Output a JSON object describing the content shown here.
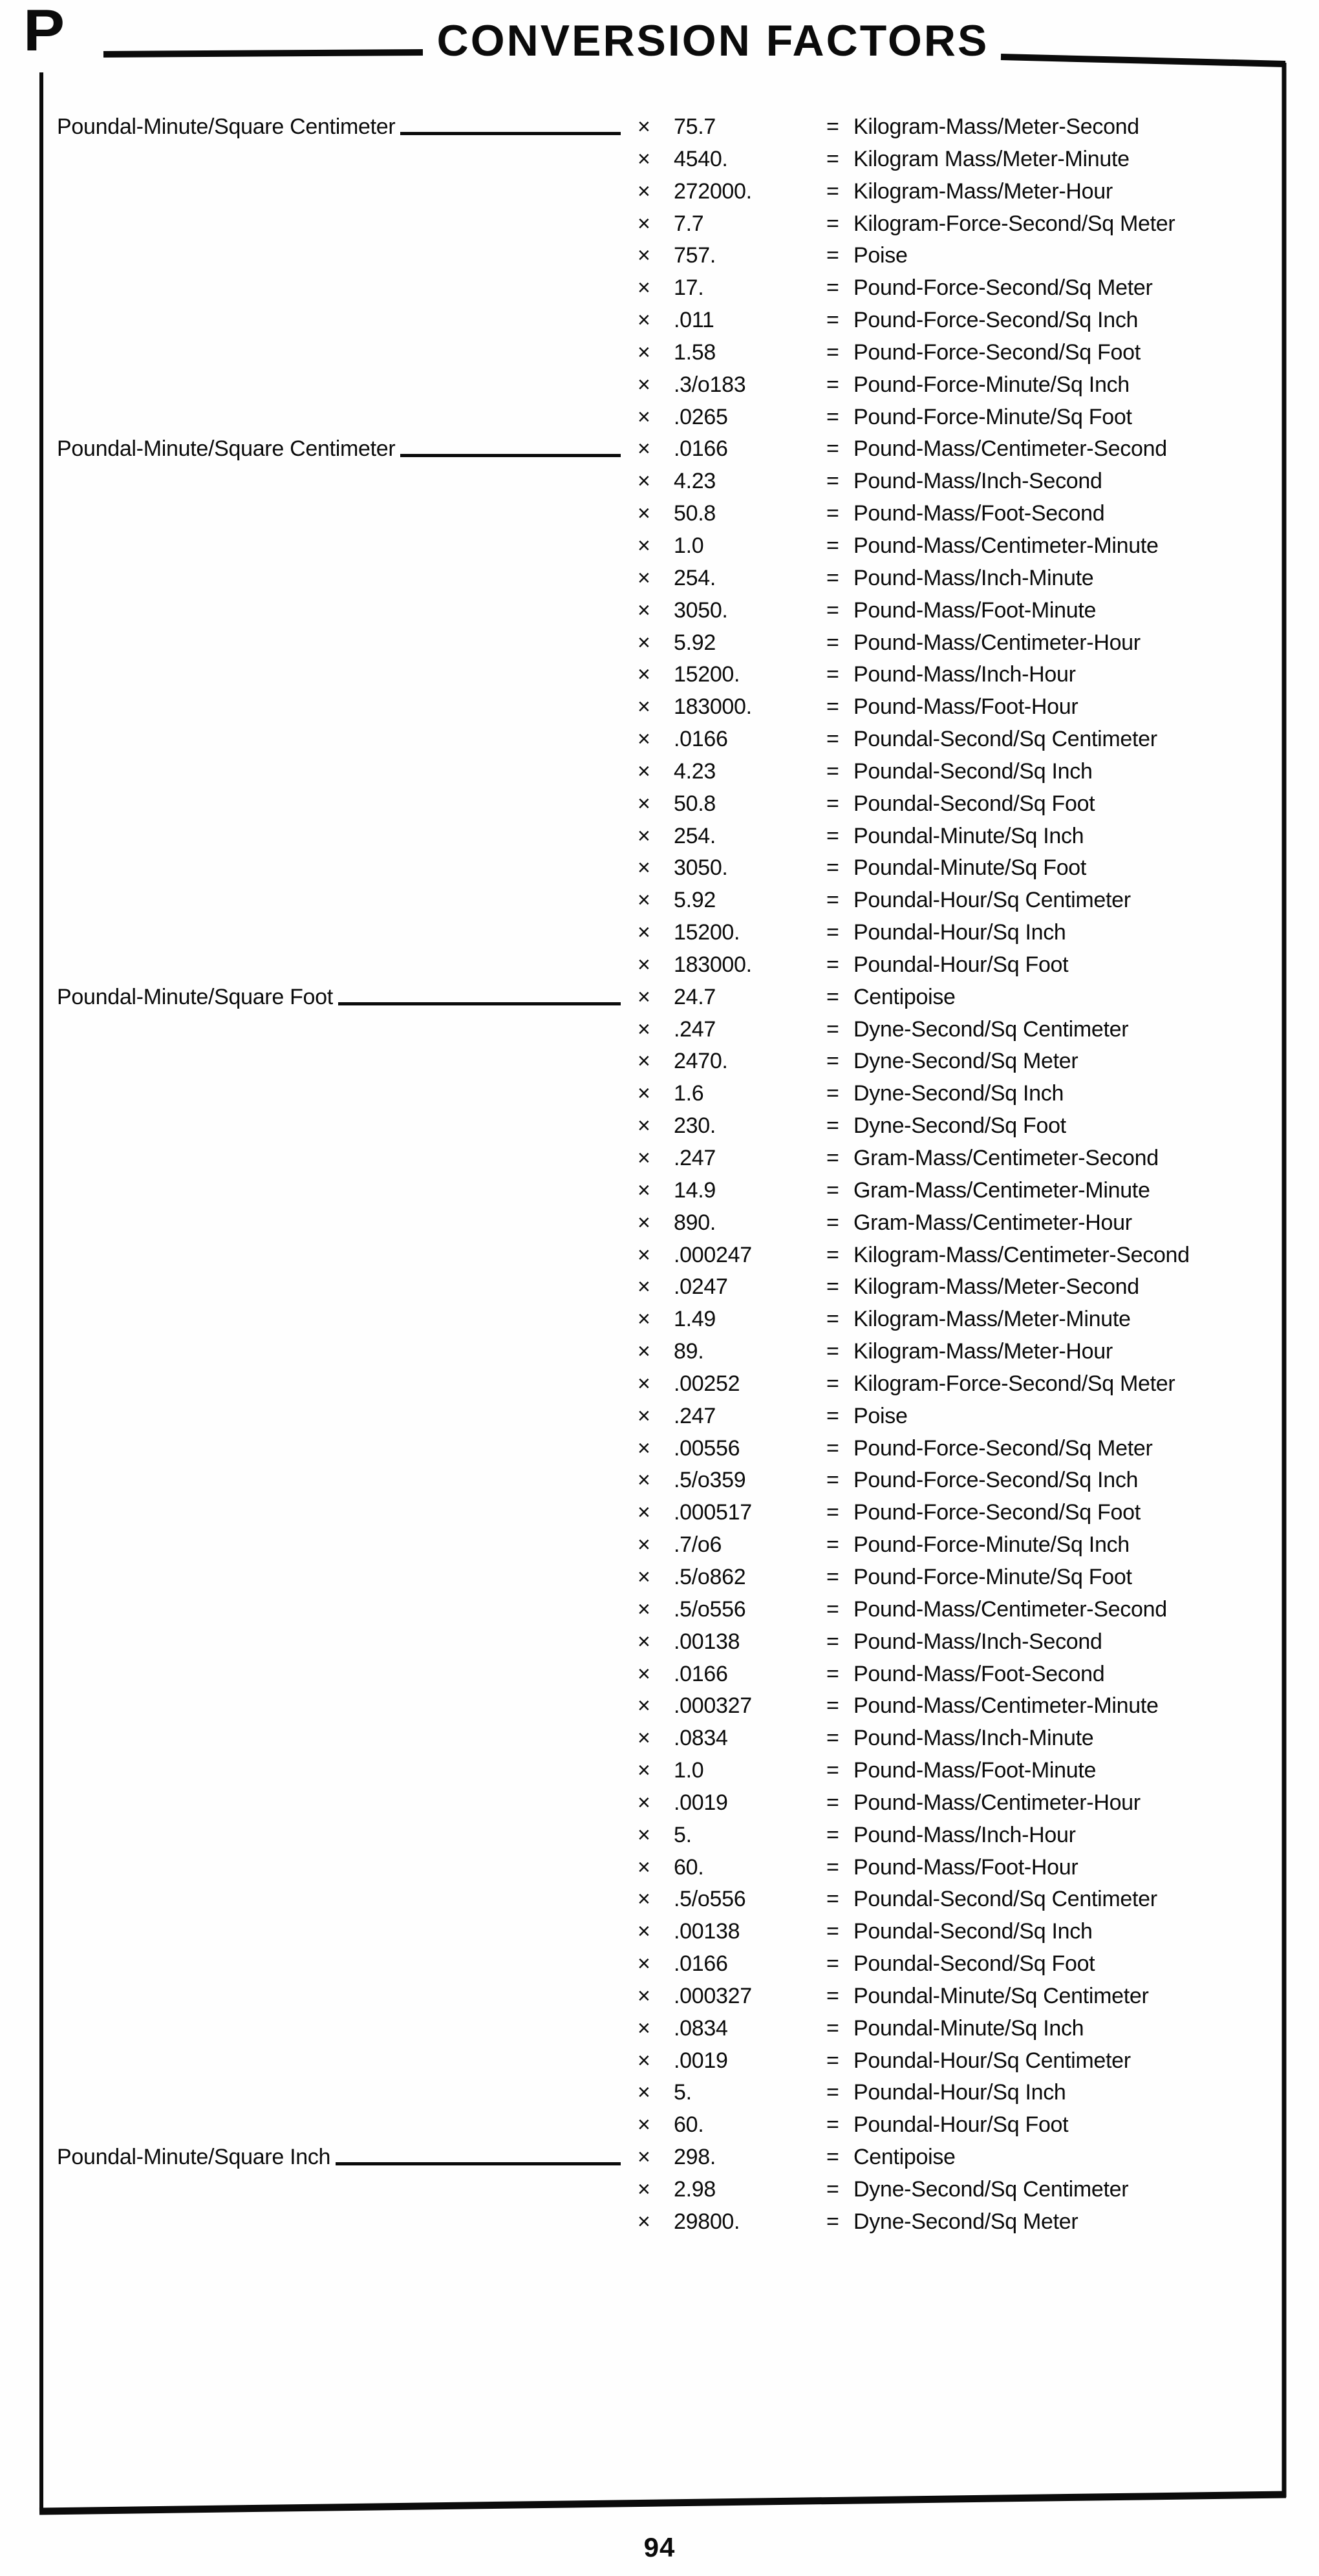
{
  "page": {
    "section_letter": "P",
    "title": "CONVERSION FACTORS",
    "page_number": "94",
    "multiply_symbol": "×",
    "equals_symbol": "="
  },
  "conversion_table": {
    "groups": [
      {
        "label": "Poundal-Minute/Square Centimeter",
        "rows": [
          {
            "factor": "75.7",
            "unit": "Kilogram-Mass/Meter-Second"
          },
          {
            "factor": "4540.",
            "unit": "Kilogram Mass/Meter-Minute"
          },
          {
            "factor": "272000.",
            "unit": "Kilogram-Mass/Meter-Hour"
          },
          {
            "factor": "7.7",
            "unit": "Kilogram-Force-Second/Sq Meter"
          },
          {
            "factor": "757.",
            "unit": "Poise"
          },
          {
            "factor": "17.",
            "unit": "Pound-Force-Second/Sq Meter"
          },
          {
            "factor": ".011",
            "unit": "Pound-Force-Second/Sq Inch"
          },
          {
            "factor": "1.58",
            "unit": "Pound-Force-Second/Sq Foot"
          },
          {
            "factor": ".3/o183",
            "unit": "Pound-Force-Minute/Sq Inch"
          },
          {
            "factor": ".0265",
            "unit": "Pound-Force-Minute/Sq Foot"
          }
        ]
      },
      {
        "label": "Poundal-Minute/Square Centimeter",
        "rows": [
          {
            "factor": ".0166",
            "unit": "Pound-Mass/Centimeter-Second"
          },
          {
            "factor": "4.23",
            "unit": "Pound-Mass/Inch-Second"
          },
          {
            "factor": "50.8",
            "unit": "Pound-Mass/Foot-Second"
          },
          {
            "factor": "1.0",
            "unit": "Pound-Mass/Centimeter-Minute"
          },
          {
            "factor": "254.",
            "unit": "Pound-Mass/Inch-Minute"
          },
          {
            "factor": "3050.",
            "unit": "Pound-Mass/Foot-Minute"
          },
          {
            "factor": "5.92",
            "unit": "Pound-Mass/Centimeter-Hour"
          },
          {
            "factor": "15200.",
            "unit": "Pound-Mass/Inch-Hour"
          },
          {
            "factor": "183000.",
            "unit": "Pound-Mass/Foot-Hour"
          },
          {
            "factor": ".0166",
            "unit": "Poundal-Second/Sq Centimeter"
          },
          {
            "factor": "4.23",
            "unit": "Poundal-Second/Sq Inch"
          },
          {
            "factor": "50.8",
            "unit": "Poundal-Second/Sq Foot"
          },
          {
            "factor": "254.",
            "unit": "Poundal-Minute/Sq Inch"
          },
          {
            "factor": "3050.",
            "unit": "Poundal-Minute/Sq Foot"
          },
          {
            "factor": "5.92",
            "unit": "Poundal-Hour/Sq Centimeter"
          },
          {
            "factor": "15200.",
            "unit": "Poundal-Hour/Sq Inch"
          },
          {
            "factor": "183000.",
            "unit": "Poundal-Hour/Sq Foot"
          }
        ]
      },
      {
        "label": "Poundal-Minute/Square Foot",
        "rows": [
          {
            "factor": "24.7",
            "unit": "Centipoise"
          },
          {
            "factor": ".247",
            "unit": "Dyne-Second/Sq Centimeter"
          },
          {
            "factor": "2470.",
            "unit": "Dyne-Second/Sq Meter"
          },
          {
            "factor": "1.6",
            "unit": "Dyne-Second/Sq Inch"
          },
          {
            "factor": "230.",
            "unit": "Dyne-Second/Sq Foot"
          },
          {
            "factor": ".247",
            "unit": "Gram-Mass/Centimeter-Second"
          },
          {
            "factor": "14.9",
            "unit": "Gram-Mass/Centimeter-Minute"
          },
          {
            "factor": "890.",
            "unit": "Gram-Mass/Centimeter-Hour"
          },
          {
            "factor": ".000247",
            "unit": "Kilogram-Mass/Centimeter-Second"
          },
          {
            "factor": ".0247",
            "unit": "Kilogram-Mass/Meter-Second"
          },
          {
            "factor": "1.49",
            "unit": "Kilogram-Mass/Meter-Minute"
          },
          {
            "factor": "89.",
            "unit": "Kilogram-Mass/Meter-Hour"
          },
          {
            "factor": ".00252",
            "unit": "Kilogram-Force-Second/Sq Meter"
          },
          {
            "factor": ".247",
            "unit": "Poise"
          },
          {
            "factor": ".00556",
            "unit": "Pound-Force-Second/Sq Meter"
          },
          {
            "factor": ".5/o359",
            "unit": "Pound-Force-Second/Sq Inch"
          },
          {
            "factor": ".000517",
            "unit": "Pound-Force-Second/Sq Foot"
          },
          {
            "factor": ".7/o6",
            "unit": "Pound-Force-Minute/Sq Inch"
          },
          {
            "factor": ".5/o862",
            "unit": "Pound-Force-Minute/Sq Foot"
          },
          {
            "factor": ".5/o556",
            "unit": "Pound-Mass/Centimeter-Second"
          },
          {
            "factor": ".00138",
            "unit": "Pound-Mass/Inch-Second"
          },
          {
            "factor": ".0166",
            "unit": "Pound-Mass/Foot-Second"
          },
          {
            "factor": ".000327",
            "unit": "Pound-Mass/Centimeter-Minute"
          },
          {
            "factor": ".0834",
            "unit": "Pound-Mass/Inch-Minute"
          },
          {
            "factor": "1.0",
            "unit": "Pound-Mass/Foot-Minute"
          },
          {
            "factor": ".0019",
            "unit": "Pound-Mass/Centimeter-Hour"
          },
          {
            "factor": "5.",
            "unit": "Pound-Mass/Inch-Hour"
          },
          {
            "factor": "60.",
            "unit": "Pound-Mass/Foot-Hour"
          },
          {
            "factor": ".5/o556",
            "unit": "Poundal-Second/Sq Centimeter"
          },
          {
            "factor": ".00138",
            "unit": "Poundal-Second/Sq Inch"
          },
          {
            "factor": ".0166",
            "unit": "Poundal-Second/Sq Foot"
          },
          {
            "factor": ".000327",
            "unit": "Poundal-Minute/Sq Centimeter"
          },
          {
            "factor": ".0834",
            "unit": "Poundal-Minute/Sq Inch"
          },
          {
            "factor": ".0019",
            "unit": "Poundal-Hour/Sq Centimeter"
          },
          {
            "factor": "5.",
            "unit": "Poundal-Hour/Sq Inch"
          },
          {
            "factor": "60.",
            "unit": "Poundal-Hour/Sq Foot"
          }
        ]
      },
      {
        "label": "Poundal-Minute/Square Inch",
        "rows": [
          {
            "factor": "298.",
            "unit": "Centipoise"
          },
          {
            "factor": "2.98",
            "unit": "Dyne-Second/Sq Centimeter"
          },
          {
            "factor": "29800.",
            "unit": "Dyne-Second/Sq Meter"
          }
        ]
      }
    ]
  }
}
